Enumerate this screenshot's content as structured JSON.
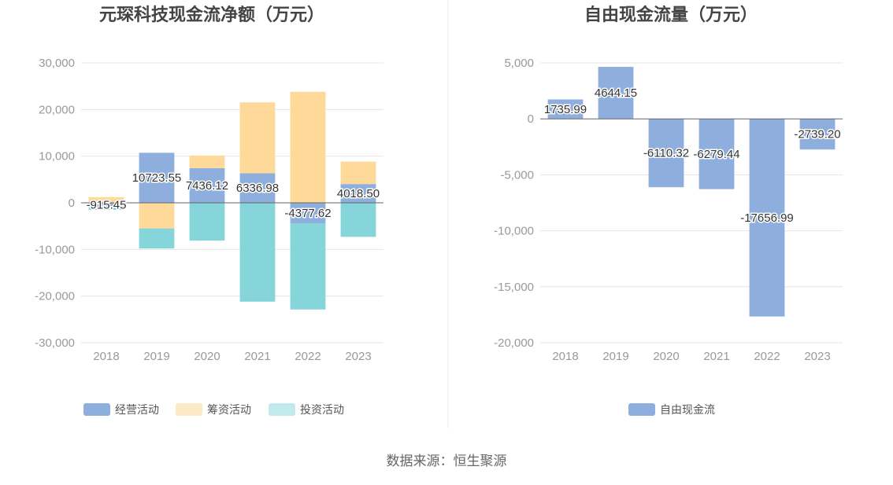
{
  "colors": {
    "operating": "#8eaedd",
    "financing": "#fed99a",
    "investing": "#86d5db",
    "legend_financing": "#fde8c8",
    "legend_investing": "#c2e9ec",
    "free_cash_flow": "#8eaedd",
    "grid": "#e4e4e4",
    "axis": "#666666"
  },
  "source": "数据来源：恒生聚源",
  "chart_data": [
    {
      "type": "bar",
      "stacked": true,
      "title": "元琛科技现金流净额（万元）",
      "categories": [
        "2018",
        "2019",
        "2020",
        "2021",
        "2022",
        "2023"
      ],
      "series": [
        {
          "name": "经营活动",
          "color_key": "operating",
          "values": [
            -915.45,
            10723.55,
            7436.12,
            6336.98,
            -4377.62,
            4018.5
          ],
          "labels": [
            "-915.45",
            "10723.55",
            "7436.12",
            "6336.98",
            "-4377.62",
            "4018.50"
          ]
        },
        {
          "name": "筹资活动",
          "color_key": "financing",
          "values": [
            1200,
            -5500,
            2700,
            15200,
            23800,
            4800
          ]
        },
        {
          "name": "投资活动",
          "color_key": "investing",
          "values": [
            -600,
            -4300,
            -8100,
            -21200,
            -18500,
            -7300
          ]
        }
      ],
      "y_ticks": [
        "30,000",
        "20,000",
        "10,000",
        "0",
        "-10,000",
        "-20,000",
        "-30,000"
      ],
      "ylim": [
        -30000,
        30000
      ],
      "grid": true,
      "legend": "bottom-center"
    },
    {
      "type": "bar",
      "title": "自由现金流量（万元）",
      "categories": [
        "2018",
        "2019",
        "2020",
        "2021",
        "2022",
        "2023"
      ],
      "series": [
        {
          "name": "自由现金流",
          "color_key": "free_cash_flow",
          "values": [
            1735.99,
            4644.15,
            -6110.32,
            -6279.44,
            -17656.99,
            -2739.2
          ],
          "labels": [
            "1735.99",
            "4644.15",
            "-6110.32",
            "-6279.44",
            "-17656.99",
            "-2739.20"
          ]
        }
      ],
      "y_ticks": [
        "5,000",
        "0",
        "-5,000",
        "-10,000",
        "-15,000",
        "-20,000"
      ],
      "ylim": [
        -20000,
        5000
      ],
      "grid": true,
      "legend": "bottom-center"
    }
  ]
}
